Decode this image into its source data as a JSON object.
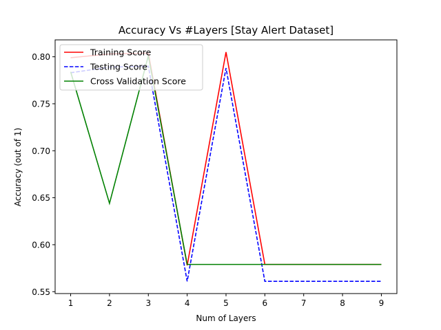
{
  "chart_data": {
    "type": "line",
    "title": "Accuracy Vs #Layers [Stay Alert Dataset]",
    "xlabel": "Num of Layers",
    "ylabel": "Accuracy (out of 1)",
    "x": [
      1,
      2,
      3,
      4,
      5,
      6,
      7,
      8,
      9
    ],
    "xlim": [
      0.6,
      9.4
    ],
    "ylim": [
      0.548,
      0.818
    ],
    "xticks": [
      1,
      2,
      3,
      4,
      5,
      6,
      7,
      8,
      9
    ],
    "yticks": [
      0.55,
      0.6,
      0.65,
      0.7,
      0.75,
      0.8
    ],
    "ytick_labels": [
      "0.55",
      "0.60",
      "0.65",
      "0.70",
      "0.75",
      "0.80"
    ],
    "grid": false,
    "legend_position": "top-left",
    "series": [
      {
        "name": "Training Score",
        "color": "#ff0000",
        "style": "solid",
        "values": [
          0.799,
          0.803,
          0.804,
          0.578,
          0.805,
          0.579,
          0.579,
          0.579,
          0.579
        ]
      },
      {
        "name": "Testing Score",
        "color": "#0000ff",
        "style": "dashed",
        "values": [
          0.783,
          0.789,
          0.79,
          0.561,
          0.788,
          0.561,
          0.561,
          0.561,
          0.561
        ]
      },
      {
        "name": "Cross Validation Score",
        "color": "#008000",
        "style": "solid",
        "values": [
          0.784,
          0.644,
          0.801,
          0.579,
          0.579,
          0.579,
          0.579,
          0.579,
          0.579
        ]
      }
    ]
  }
}
